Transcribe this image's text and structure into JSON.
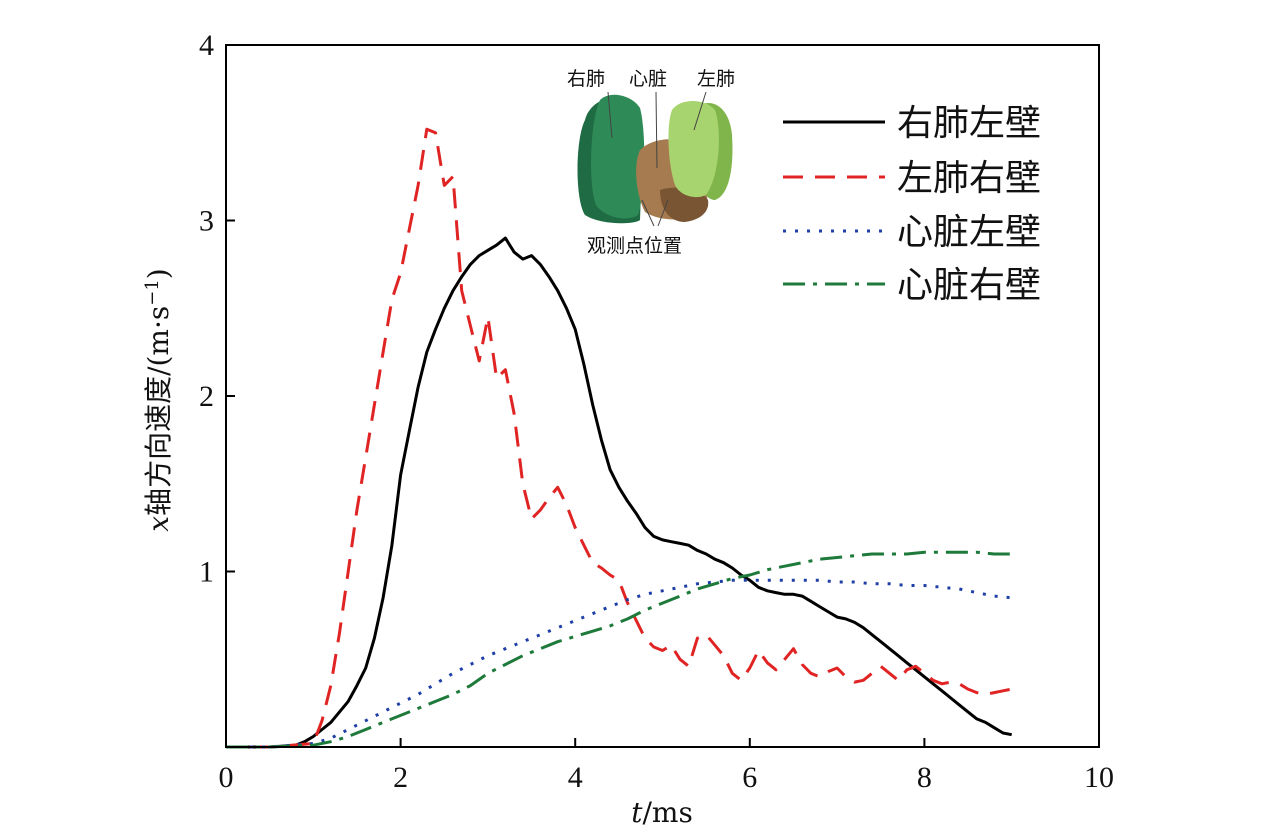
{
  "chart_data": {
    "type": "line",
    "xlabel_var": "t",
    "xlabel_unit": "/ms",
    "ylabel_prefix": "x",
    "ylabel_main": "轴方向速度/(m·s",
    "ylabel_exp": "−1",
    "ylabel_close": ")",
    "xlim": [
      0,
      10
    ],
    "ylim": [
      0,
      4
    ],
    "xticks": [
      0,
      2,
      4,
      6,
      8,
      10
    ],
    "yticks": [
      1,
      2,
      3,
      4
    ],
    "grid": false,
    "legend_position": "top-right",
    "series": [
      {
        "name": "右肺左壁",
        "color": "#000000",
        "dash": "solid",
        "x": [
          0,
          0.5,
          0.8,
          0.9,
          1.0,
          1.1,
          1.2,
          1.3,
          1.4,
          1.5,
          1.6,
          1.7,
          1.8,
          1.9,
          2.0,
          2.1,
          2.2,
          2.3,
          2.4,
          2.5,
          2.6,
          2.7,
          2.8,
          2.9,
          3.0,
          3.1,
          3.2,
          3.3,
          3.4,
          3.5,
          3.6,
          3.7,
          3.8,
          3.9,
          4.0,
          4.1,
          4.2,
          4.3,
          4.4,
          4.5,
          4.6,
          4.7,
          4.8,
          4.9,
          5.0,
          5.1,
          5.2,
          5.3,
          5.4,
          5.5,
          5.6,
          5.7,
          5.8,
          5.9,
          6.0,
          6.1,
          6.2,
          6.3,
          6.4,
          6.5,
          6.6,
          6.7,
          6.8,
          6.9,
          7.0,
          7.1,
          7.2,
          7.3,
          7.4,
          7.5,
          7.6,
          7.7,
          7.8,
          7.9,
          8.0,
          8.1,
          8.2,
          8.3,
          8.4,
          8.5,
          8.6,
          8.7,
          8.8,
          8.9,
          9.0
        ],
        "y": [
          0,
          0,
          0.01,
          0.03,
          0.06,
          0.1,
          0.14,
          0.2,
          0.26,
          0.35,
          0.45,
          0.62,
          0.85,
          1.15,
          1.55,
          1.8,
          2.05,
          2.25,
          2.38,
          2.5,
          2.6,
          2.68,
          2.75,
          2.8,
          2.83,
          2.86,
          2.9,
          2.82,
          2.78,
          2.8,
          2.75,
          2.68,
          2.6,
          2.5,
          2.38,
          2.18,
          1.95,
          1.75,
          1.58,
          1.48,
          1.4,
          1.33,
          1.25,
          1.2,
          1.18,
          1.17,
          1.16,
          1.15,
          1.12,
          1.1,
          1.07,
          1.05,
          1.02,
          0.98,
          0.95,
          0.91,
          0.89,
          0.88,
          0.87,
          0.87,
          0.86,
          0.83,
          0.8,
          0.77,
          0.74,
          0.73,
          0.71,
          0.68,
          0.64,
          0.6,
          0.56,
          0.52,
          0.48,
          0.44,
          0.4,
          0.36,
          0.32,
          0.28,
          0.24,
          0.2,
          0.16,
          0.14,
          0.11,
          0.08,
          0.07
        ]
      },
      {
        "name": "左肺右壁",
        "color": "#e02424",
        "dash": "20,12",
        "x": [
          0,
          0.5,
          1.0,
          1.1,
          1.2,
          1.3,
          1.4,
          1.5,
          1.6,
          1.7,
          1.8,
          1.9,
          2.0,
          2.1,
          2.2,
          2.3,
          2.4,
          2.5,
          2.6,
          2.7,
          2.8,
          2.9,
          3.0,
          3.1,
          3.2,
          3.3,
          3.4,
          3.5,
          3.6,
          3.7,
          3.8,
          3.9,
          4.0,
          4.1,
          4.2,
          4.3,
          4.4,
          4.5,
          4.6,
          4.7,
          4.8,
          4.9,
          5.0,
          5.1,
          5.2,
          5.3,
          5.4,
          5.5,
          5.6,
          5.7,
          5.8,
          5.9,
          6.0,
          6.1,
          6.2,
          6.3,
          6.4,
          6.5,
          6.6,
          6.7,
          6.8,
          6.9,
          7.0,
          7.1,
          7.2,
          7.3,
          7.4,
          7.5,
          7.6,
          7.7,
          7.8,
          7.9,
          8.0,
          8.1,
          8.2,
          8.3,
          8.4,
          8.5,
          8.6,
          8.7,
          8.8,
          8.9,
          9.0
        ],
        "y": [
          0,
          0,
          0.02,
          0.15,
          0.35,
          0.65,
          1.0,
          1.35,
          1.65,
          1.95,
          2.25,
          2.55,
          2.7,
          2.95,
          3.2,
          3.52,
          3.5,
          3.2,
          3.25,
          2.6,
          2.4,
          2.2,
          2.45,
          2.1,
          2.15,
          1.9,
          1.5,
          1.3,
          1.35,
          1.42,
          1.48,
          1.38,
          1.25,
          1.15,
          1.05,
          1.02,
          0.98,
          0.95,
          0.82,
          0.72,
          0.62,
          0.57,
          0.55,
          0.58,
          0.5,
          0.46,
          0.62,
          0.64,
          0.58,
          0.52,
          0.42,
          0.38,
          0.45,
          0.55,
          0.48,
          0.44,
          0.5,
          0.56,
          0.47,
          0.42,
          0.4,
          0.43,
          0.45,
          0.4,
          0.37,
          0.38,
          0.42,
          0.46,
          0.42,
          0.38,
          0.44,
          0.46,
          0.42,
          0.38,
          0.36,
          0.37,
          0.36,
          0.33,
          0.31,
          0.3,
          0.31,
          0.32,
          0.33
        ]
      },
      {
        "name": "心脏左壁",
        "color": "#1f3fa6",
        "dash": "3,9",
        "x": [
          0,
          0.5,
          1.0,
          1.2,
          1.4,
          1.6,
          1.8,
          2.0,
          2.2,
          2.4,
          2.6,
          2.8,
          3.0,
          3.2,
          3.4,
          3.6,
          3.8,
          4.0,
          4.2,
          4.4,
          4.6,
          4.8,
          5.0,
          5.2,
          5.4,
          5.6,
          5.8,
          6.0,
          6.2,
          6.4,
          6.6,
          6.8,
          7.0,
          7.2,
          7.4,
          7.6,
          7.8,
          8.0,
          8.2,
          8.4,
          8.6,
          8.8,
          9.0
        ],
        "y": [
          0,
          0,
          0.02,
          0.05,
          0.1,
          0.15,
          0.2,
          0.25,
          0.3,
          0.36,
          0.42,
          0.47,
          0.52,
          0.56,
          0.6,
          0.64,
          0.68,
          0.72,
          0.76,
          0.8,
          0.84,
          0.87,
          0.89,
          0.91,
          0.93,
          0.94,
          0.95,
          0.95,
          0.95,
          0.95,
          0.95,
          0.95,
          0.94,
          0.94,
          0.93,
          0.93,
          0.92,
          0.92,
          0.91,
          0.9,
          0.88,
          0.86,
          0.85
        ]
      },
      {
        "name": "心脏右壁",
        "color": "#1e7a3a",
        "dash": "22,8,4,8",
        "x": [
          0,
          0.5,
          1.0,
          1.2,
          1.4,
          1.6,
          1.8,
          2.0,
          2.2,
          2.4,
          2.6,
          2.8,
          3.0,
          3.2,
          3.4,
          3.6,
          3.8,
          4.0,
          4.2,
          4.4,
          4.6,
          4.8,
          5.0,
          5.2,
          5.4,
          5.6,
          5.8,
          6.0,
          6.2,
          6.4,
          6.6,
          6.8,
          7.0,
          7.2,
          7.4,
          7.6,
          7.8,
          8.0,
          8.2,
          8.4,
          8.6,
          8.8,
          9.0
        ],
        "y": [
          0,
          0,
          0.01,
          0.03,
          0.06,
          0.1,
          0.14,
          0.18,
          0.22,
          0.26,
          0.3,
          0.35,
          0.42,
          0.47,
          0.52,
          0.56,
          0.6,
          0.63,
          0.66,
          0.69,
          0.73,
          0.78,
          0.82,
          0.86,
          0.9,
          0.93,
          0.96,
          0.98,
          1.01,
          1.03,
          1.05,
          1.07,
          1.08,
          1.09,
          1.1,
          1.1,
          1.1,
          1.11,
          1.11,
          1.11,
          1.11,
          1.1,
          1.1
        ]
      }
    ],
    "inset": {
      "labels": {
        "right_lung": "右肺",
        "heart": "心脏",
        "left_lung": "左肺",
        "observation": "观测点位置"
      },
      "colors": {
        "right_lung": "#2e8b57",
        "right_lung_dark": "#1f6b44",
        "heart": "#a67b4f",
        "left_lung": "#a8d46f"
      }
    }
  }
}
